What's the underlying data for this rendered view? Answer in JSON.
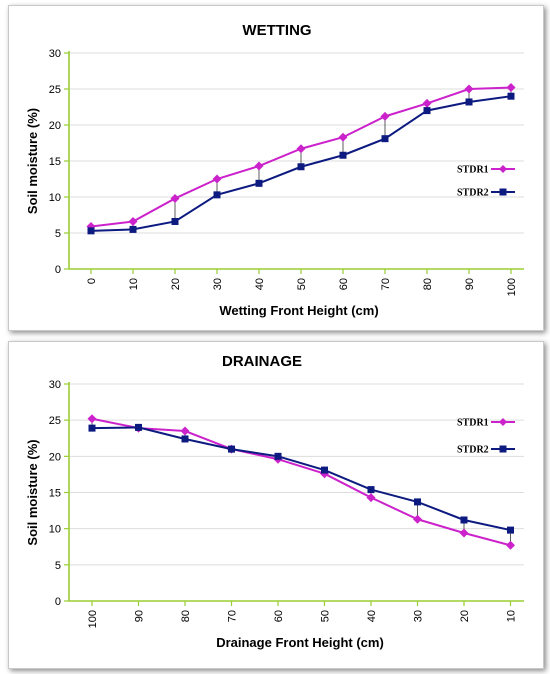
{
  "colors": {
    "stdr1": "#cc22cc",
    "stdr2": "#0d1a80",
    "axis": "#9acd32"
  },
  "chart_data": [
    {
      "type": "line",
      "title": "WETTING",
      "xlabel": "Wetting Front Height (cm)",
      "ylabel": "Soil moisture (%)",
      "categories": [
        "0",
        "10",
        "20",
        "30",
        "40",
        "50",
        "60",
        "70",
        "80",
        "90",
        "100"
      ],
      "ylim": [
        0,
        30
      ],
      "yticks": [
        "0",
        "5",
        "10",
        "15",
        "20",
        "25",
        "30"
      ],
      "grid": "horizontal",
      "legend": "right",
      "series": [
        {
          "name": "STDR1",
          "marker": "diamond",
          "values": [
            5.9,
            6.6,
            9.8,
            12.5,
            14.3,
            16.7,
            18.3,
            21.2,
            23.0,
            25.0,
            25.2
          ]
        },
        {
          "name": "STDR2",
          "marker": "square",
          "values": [
            5.3,
            5.5,
            6.6,
            10.3,
            11.9,
            14.2,
            15.8,
            18.1,
            22.0,
            23.2,
            24.0
          ]
        }
      ]
    },
    {
      "type": "line",
      "title": "DRAINAGE",
      "xlabel": "Drainage Front Height (cm)",
      "ylabel": "Soil moisture (%)",
      "categories": [
        "100",
        "90",
        "80",
        "70",
        "60",
        "50",
        "40",
        "30",
        "20",
        "10"
      ],
      "ylim": [
        0,
        30
      ],
      "yticks": [
        "0",
        "5",
        "10",
        "15",
        "20",
        "25",
        "30"
      ],
      "grid": "horizontal",
      "legend": "right",
      "series": [
        {
          "name": "STDR1",
          "marker": "diamond",
          "values": [
            25.2,
            23.9,
            23.5,
            21.0,
            19.6,
            17.6,
            14.3,
            11.3,
            9.4,
            7.7
          ]
        },
        {
          "name": "STDR2",
          "marker": "square",
          "values": [
            23.9,
            24.0,
            22.4,
            21.0,
            20.0,
            18.1,
            15.4,
            13.7,
            11.2,
            9.8
          ]
        }
      ]
    }
  ]
}
